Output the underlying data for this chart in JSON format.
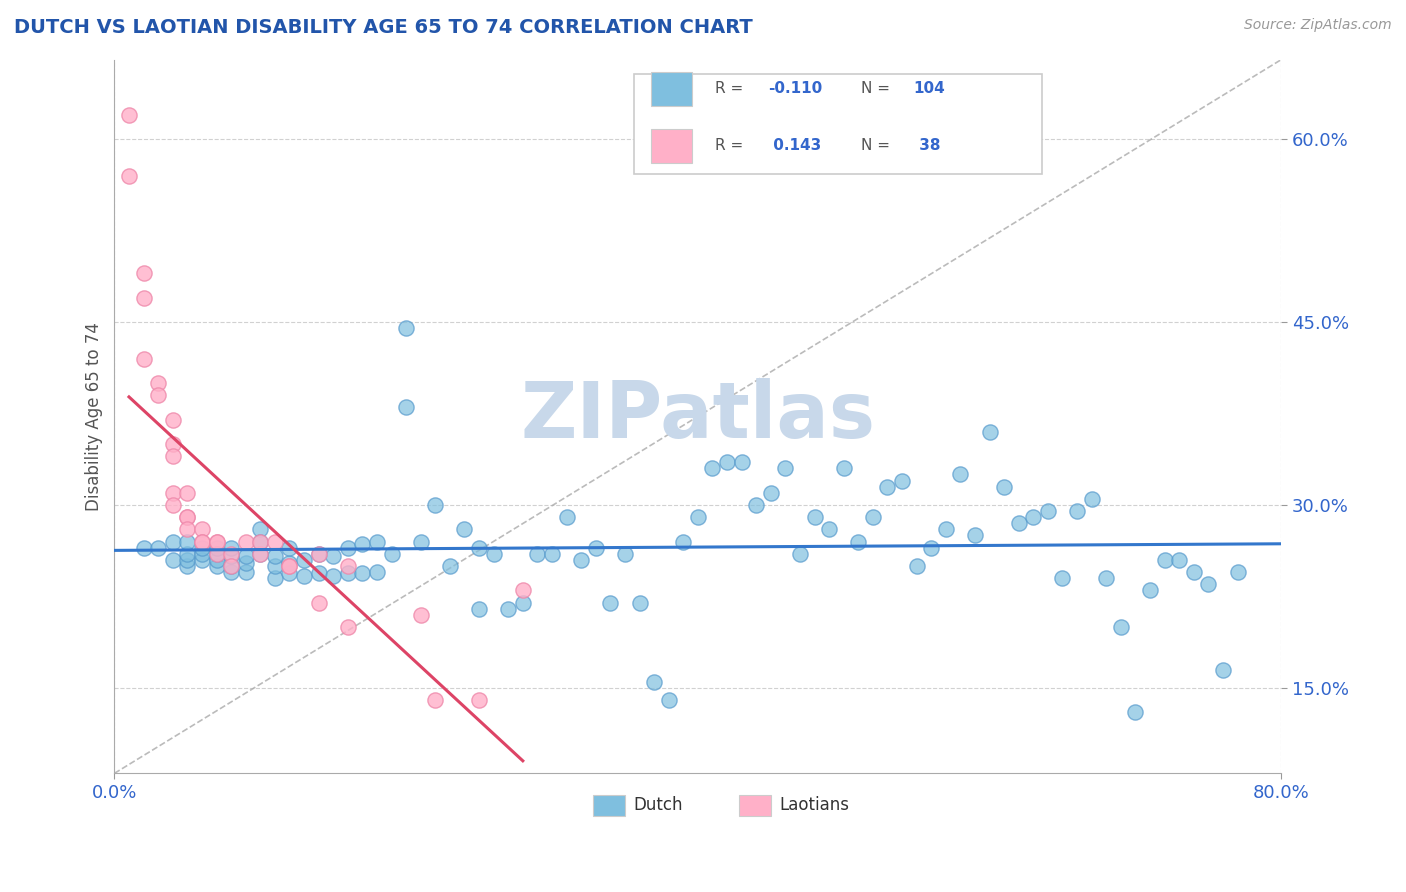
{
  "title": "DUTCH VS LAOTIAN DISABILITY AGE 65 TO 74 CORRELATION CHART",
  "source": "Source: ZipAtlas.com",
  "ylabel": "Disability Age 65 to 74",
  "xlim": [
    0.0,
    0.8
  ],
  "ylim": [
    0.08,
    0.665
  ],
  "yticks": [
    0.15,
    0.3,
    0.45,
    0.6
  ],
  "yticklabels": [
    "15.0%",
    "30.0%",
    "45.0%",
    "60.0%"
  ],
  "dutch_color": "#7fbfdf",
  "dutch_edge_color": "#5599cc",
  "laotian_color": "#ffb0c8",
  "laotian_edge_color": "#ee88aa",
  "dutch_line_color": "#3377cc",
  "laotian_line_color": "#dd4466",
  "background_color": "#ffffff",
  "grid_color": "#cccccc",
  "title_color": "#2255aa",
  "axis_label_color": "#555555",
  "watermark": "ZIPatlas",
  "watermark_color": "#c8d8ea",
  "dutch_R": -0.11,
  "dutch_N": 104,
  "laotian_R": 0.143,
  "laotian_N": 38,
  "dutch_x": [
    0.02,
    0.03,
    0.04,
    0.04,
    0.05,
    0.05,
    0.05,
    0.05,
    0.06,
    0.06,
    0.06,
    0.07,
    0.07,
    0.07,
    0.07,
    0.08,
    0.08,
    0.08,
    0.08,
    0.09,
    0.09,
    0.09,
    0.1,
    0.1,
    0.1,
    0.11,
    0.11,
    0.11,
    0.12,
    0.12,
    0.12,
    0.13,
    0.13,
    0.14,
    0.14,
    0.15,
    0.15,
    0.16,
    0.16,
    0.17,
    0.17,
    0.18,
    0.18,
    0.19,
    0.2,
    0.2,
    0.21,
    0.22,
    0.23,
    0.24,
    0.25,
    0.25,
    0.26,
    0.27,
    0.28,
    0.29,
    0.3,
    0.31,
    0.32,
    0.33,
    0.34,
    0.35,
    0.36,
    0.37,
    0.38,
    0.39,
    0.4,
    0.41,
    0.42,
    0.43,
    0.44,
    0.45,
    0.46,
    0.47,
    0.48,
    0.49,
    0.5,
    0.51,
    0.52,
    0.53,
    0.54,
    0.55,
    0.56,
    0.57,
    0.58,
    0.59,
    0.6,
    0.61,
    0.62,
    0.63,
    0.64,
    0.65,
    0.66,
    0.67,
    0.68,
    0.69,
    0.7,
    0.71,
    0.72,
    0.73,
    0.74,
    0.75,
    0.76,
    0.77
  ],
  "dutch_y": [
    0.265,
    0.265,
    0.255,
    0.27,
    0.25,
    0.255,
    0.26,
    0.27,
    0.255,
    0.26,
    0.265,
    0.25,
    0.255,
    0.26,
    0.265,
    0.245,
    0.25,
    0.258,
    0.265,
    0.245,
    0.252,
    0.258,
    0.28,
    0.26,
    0.27,
    0.24,
    0.25,
    0.258,
    0.244,
    0.252,
    0.265,
    0.242,
    0.255,
    0.244,
    0.26,
    0.242,
    0.258,
    0.244,
    0.265,
    0.244,
    0.268,
    0.245,
    0.27,
    0.26,
    0.38,
    0.445,
    0.27,
    0.3,
    0.25,
    0.28,
    0.265,
    0.215,
    0.26,
    0.215,
    0.22,
    0.26,
    0.26,
    0.29,
    0.255,
    0.265,
    0.22,
    0.26,
    0.22,
    0.155,
    0.14,
    0.27,
    0.29,
    0.33,
    0.335,
    0.335,
    0.3,
    0.31,
    0.33,
    0.26,
    0.29,
    0.28,
    0.33,
    0.27,
    0.29,
    0.315,
    0.32,
    0.25,
    0.265,
    0.28,
    0.325,
    0.275,
    0.36,
    0.315,
    0.285,
    0.29,
    0.295,
    0.24,
    0.295,
    0.305,
    0.24,
    0.2,
    0.13,
    0.23,
    0.255,
    0.255,
    0.245,
    0.235,
    0.165,
    0.245
  ],
  "laotian_x": [
    0.01,
    0.01,
    0.02,
    0.02,
    0.02,
    0.03,
    0.03,
    0.04,
    0.04,
    0.04,
    0.04,
    0.04,
    0.05,
    0.05,
    0.05,
    0.05,
    0.06,
    0.06,
    0.06,
    0.07,
    0.07,
    0.07,
    0.08,
    0.08,
    0.09,
    0.1,
    0.1,
    0.11,
    0.12,
    0.12,
    0.14,
    0.14,
    0.16,
    0.16,
    0.21,
    0.22,
    0.25,
    0.28
  ],
  "laotian_y": [
    0.62,
    0.57,
    0.49,
    0.47,
    0.42,
    0.4,
    0.39,
    0.37,
    0.35,
    0.34,
    0.31,
    0.3,
    0.31,
    0.29,
    0.29,
    0.28,
    0.28,
    0.27,
    0.27,
    0.27,
    0.26,
    0.27,
    0.26,
    0.25,
    0.27,
    0.26,
    0.27,
    0.27,
    0.25,
    0.25,
    0.22,
    0.26,
    0.25,
    0.2,
    0.21,
    0.14,
    0.14,
    0.23
  ],
  "legend_dutch_label": "Dutch",
  "legend_laotian_label": "Laotians"
}
